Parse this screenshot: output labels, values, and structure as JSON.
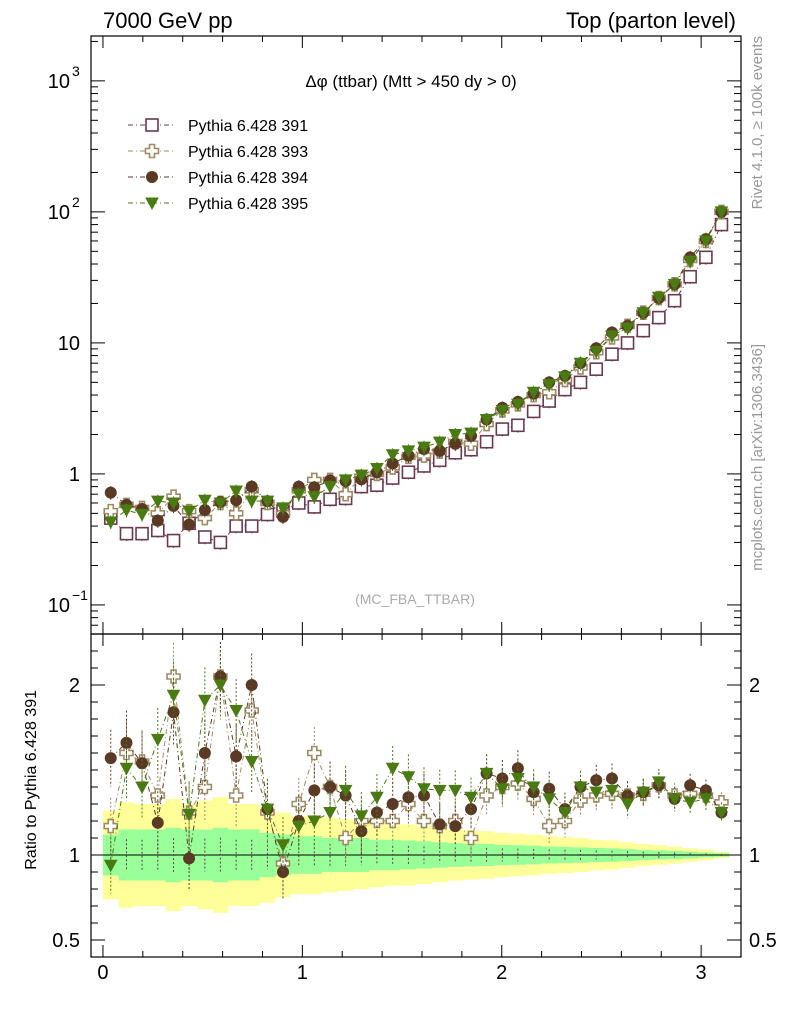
{
  "header": {
    "left": "7000 GeV pp",
    "right": "Top (parton level)"
  },
  "side_labels": {
    "rivet": "Rivet 4.1.0, ≥ 100k events",
    "mcplots": "mcplots.cern.ch [arXiv:1306.3436]"
  },
  "chart_data": {
    "type": "scatter",
    "title": "Δφ (ttbar) (Mtt > 450 dy > 0)",
    "watermark": "(MC_FBA_TTBAR)",
    "xlim": [
      -0.06,
      3.2
    ],
    "ylim": [
      0.06,
      2200
    ],
    "yscale": "log",
    "xticks": [
      0,
      1,
      2,
      3
    ],
    "yticks": [
      {
        "label": "10",
        "sup": "−1",
        "value": 0.1
      },
      {
        "label": "1",
        "sup": "",
        "value": 1
      },
      {
        "label": "10",
        "sup": "",
        "value": 10
      },
      {
        "label": "10",
        "sup": "2",
        "value": 100
      },
      {
        "label": "10",
        "sup": "3",
        "value": 1000
      }
    ],
    "x": [
      0.039,
      0.118,
      0.196,
      0.275,
      0.354,
      0.432,
      0.511,
      0.589,
      0.668,
      0.746,
      0.825,
      0.903,
      0.982,
      1.06,
      1.139,
      1.217,
      1.296,
      1.374,
      1.453,
      1.532,
      1.61,
      1.689,
      1.767,
      1.846,
      1.924,
      2.003,
      2.081,
      2.16,
      2.238,
      2.317,
      2.395,
      2.474,
      2.553,
      2.631,
      2.71,
      2.788,
      2.867,
      2.945,
      3.024,
      3.102
    ],
    "series": [
      {
        "name": "Pythia 6.428 391",
        "color": "#6b3a50",
        "marker": "open-square",
        "values": [
          0.46,
          0.35,
          0.35,
          0.37,
          0.31,
          0.42,
          0.33,
          0.3,
          0.4,
          0.4,
          0.49,
          0.52,
          0.6,
          0.56,
          0.64,
          0.65,
          0.8,
          0.82,
          0.93,
          1.03,
          1.15,
          1.27,
          1.45,
          1.53,
          1.76,
          2.2,
          2.35,
          3.0,
          3.6,
          4.4,
          5.0,
          6.3,
          8.2,
          10.0,
          12.4,
          15.6,
          21.0,
          32.0,
          45.0,
          80.0
        ]
      },
      {
        "name": "Pythia 6.428 393",
        "color": "#9e8a63",
        "marker": "open-cross",
        "values": [
          0.52,
          0.58,
          0.55,
          0.5,
          0.67,
          0.52,
          0.46,
          0.6,
          0.5,
          0.75,
          0.6,
          0.5,
          0.75,
          0.9,
          0.9,
          0.7,
          0.95,
          1.0,
          1.12,
          1.35,
          1.38,
          1.48,
          1.75,
          1.7,
          2.4,
          3.05,
          3.4,
          4.0,
          4.2,
          5.2,
          6.5,
          8.5,
          11.0,
          13.5,
          17.0,
          22.0,
          28.0,
          43.0,
          60.0,
          100.0
        ]
      },
      {
        "name": "Pythia 6.428 394",
        "color": "#5a3a24",
        "marker": "filled-circle",
        "values": [
          0.72,
          0.58,
          0.54,
          0.44,
          0.57,
          0.41,
          0.53,
          0.61,
          0.63,
          0.8,
          0.62,
          0.47,
          0.8,
          0.79,
          0.89,
          0.88,
          0.91,
          1.03,
          1.2,
          1.38,
          1.55,
          1.5,
          1.7,
          1.95,
          2.6,
          3.2,
          3.55,
          4.1,
          5.0,
          5.6,
          7.0,
          9.1,
          12.0,
          13.5,
          17.0,
          22.0,
          28.0,
          45.0,
          62.0,
          100.0
        ]
      },
      {
        "name": "Pythia 6.428 395",
        "color": "#4a7a12",
        "marker": "filled-triangle-down",
        "values": [
          0.43,
          0.53,
          0.49,
          0.62,
          0.6,
          0.52,
          0.63,
          0.6,
          0.74,
          0.62,
          0.62,
          0.55,
          0.7,
          0.67,
          0.8,
          0.9,
          0.98,
          1.1,
          1.4,
          1.5,
          1.6,
          1.75,
          2.0,
          2.05,
          2.6,
          3.05,
          3.4,
          4.2,
          4.8,
          5.5,
          7.0,
          8.6,
          11.3,
          13.0,
          17.0,
          22.3,
          28.0,
          42.0,
          60.0,
          100.0
        ]
      }
    ],
    "ratio": {
      "ylabel": "Ratio to Pythia 6.428 391",
      "ylim": [
        0.4,
        2.3
      ],
      "yticks": [
        0.5,
        1,
        2
      ],
      "yticklabels": [
        "0.5",
        "1",
        "2"
      ],
      "band_yellow": [
        0.26,
        0.31,
        0.3,
        0.3,
        0.33,
        0.3,
        0.32,
        0.34,
        0.3,
        0.3,
        0.28,
        0.25,
        0.23,
        0.23,
        0.22,
        0.21,
        0.2,
        0.19,
        0.18,
        0.18,
        0.17,
        0.16,
        0.15,
        0.145,
        0.14,
        0.13,
        0.125,
        0.12,
        0.11,
        0.105,
        0.1,
        0.09,
        0.085,
        0.075,
        0.065,
        0.058,
        0.05,
        0.04,
        0.032,
        0.02
      ],
      "band_green": [
        0.12,
        0.15,
        0.15,
        0.15,
        0.16,
        0.15,
        0.15,
        0.16,
        0.15,
        0.15,
        0.13,
        0.12,
        0.11,
        0.11,
        0.1,
        0.1,
        0.1,
        0.09,
        0.09,
        0.085,
        0.08,
        0.075,
        0.07,
        0.068,
        0.065,
        0.06,
        0.058,
        0.055,
        0.05,
        0.048,
        0.045,
        0.042,
        0.04,
        0.035,
        0.03,
        0.027,
        0.024,
        0.02,
        0.015,
        0.01
      ],
      "series": [
        {
          "name": "Pythia 6.428 393",
          "values": [
            1.17,
            1.6,
            1.55,
            1.35,
            2.05,
            1.25,
            1.4,
            2.05,
            1.35,
            1.85,
            1.25,
            0.95,
            1.3,
            1.6,
            1.4,
            1.1,
            1.2,
            1.2,
            1.2,
            1.3,
            1.2,
            1.17,
            1.2,
            1.1,
            1.35,
            1.4,
            1.42,
            1.33,
            1.17,
            1.2,
            1.32,
            1.35,
            1.36,
            1.35,
            1.36,
            1.41,
            1.35,
            1.36,
            1.35,
            1.31
          ]
        },
        {
          "name": "Pythia 6.428 394",
          "values": [
            1.57,
            1.66,
            1.54,
            1.19,
            1.84,
            0.98,
            1.6,
            2.05,
            1.58,
            2.0,
            1.27,
            0.9,
            1.2,
            1.38,
            1.4,
            1.35,
            1.14,
            1.25,
            1.3,
            1.34,
            1.35,
            1.18,
            1.17,
            1.27,
            1.48,
            1.45,
            1.51,
            1.37,
            1.39,
            1.27,
            1.4,
            1.44,
            1.45,
            1.35,
            1.37,
            1.41,
            1.33,
            1.41,
            1.38,
            1.25
          ]
        },
        {
          "name": "Pythia 6.428 395",
          "values": [
            0.94,
            1.51,
            1.4,
            1.68,
            1.94,
            1.24,
            1.91,
            2.0,
            1.85,
            1.55,
            1.27,
            1.06,
            1.17,
            1.2,
            1.25,
            1.38,
            1.23,
            1.34,
            1.51,
            1.46,
            1.39,
            1.38,
            1.38,
            1.34,
            1.48,
            1.39,
            1.45,
            1.4,
            1.33,
            1.25,
            1.4,
            1.37,
            1.38,
            1.3,
            1.37,
            1.43,
            1.33,
            1.31,
            1.33,
            1.25
          ]
        }
      ]
    }
  }
}
